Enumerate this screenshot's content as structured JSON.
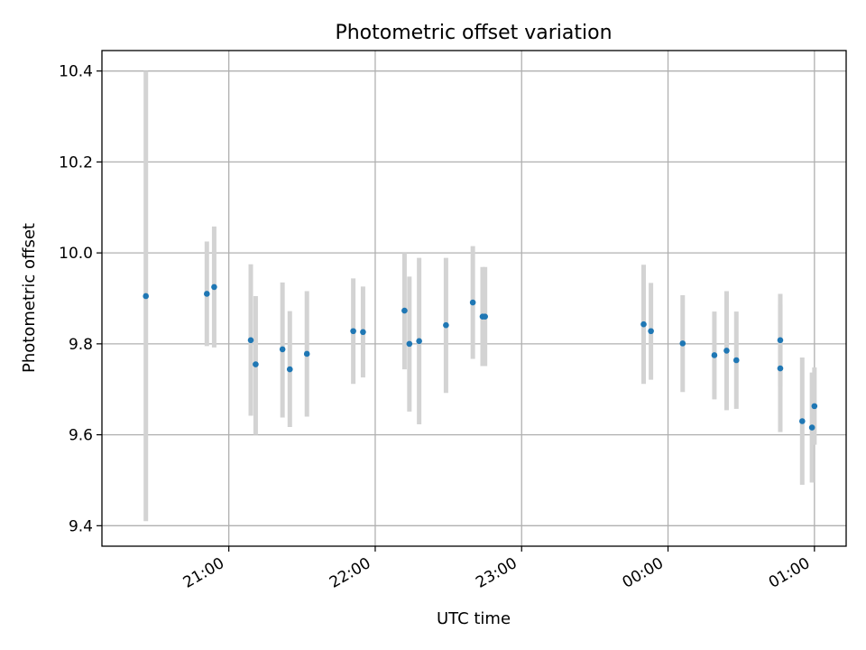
{
  "chart_data": {
    "type": "scatter",
    "title": "Photometric offset variation",
    "xlabel": "UTC time",
    "ylabel": "Photometric offset",
    "x_axis_kind": "time",
    "xlim": [
      "20:08",
      "01:13"
    ],
    "ylim": [
      9.355,
      10.445
    ],
    "xticks": [
      {
        "value": "21:00",
        "label": "21:00"
      },
      {
        "value": "22:00",
        "label": "22:00"
      },
      {
        "value": "23:00",
        "label": "23:00"
      },
      {
        "value": "00:00",
        "label": "00:00"
      },
      {
        "value": "01:00",
        "label": "01:00"
      }
    ],
    "yticks": [
      {
        "value": 9.4,
        "label": "9.4"
      },
      {
        "value": 9.6,
        "label": "9.6"
      },
      {
        "value": 9.8,
        "label": "9.8"
      },
      {
        "value": 10.0,
        "label": "10.0"
      },
      {
        "value": 10.2,
        "label": "10.2"
      },
      {
        "value": 10.4,
        "label": "10.4"
      }
    ],
    "grid": true,
    "colors": {
      "point": "#1f77b4",
      "errorbar": "#d3d3d3"
    },
    "points": [
      {
        "t": "20:26",
        "y": 9.905,
        "lo": 9.41,
        "hi": 10.4
      },
      {
        "t": "20:51",
        "y": 9.91,
        "lo": 9.795,
        "hi": 10.025
      },
      {
        "t": "20:54",
        "y": 9.925,
        "lo": 9.792,
        "hi": 10.058
      },
      {
        "t": "21:09",
        "y": 9.808,
        "lo": 9.642,
        "hi": 9.975
      },
      {
        "t": "21:11",
        "y": 9.755,
        "lo": 9.6,
        "hi": 9.905
      },
      {
        "t": "21:22",
        "y": 9.788,
        "lo": 9.638,
        "hi": 9.935
      },
      {
        "t": "21:25",
        "y": 9.744,
        "lo": 9.617,
        "hi": 9.872
      },
      {
        "t": "21:32",
        "y": 9.778,
        "lo": 9.64,
        "hi": 9.916
      },
      {
        "t": "21:51",
        "y": 9.828,
        "lo": 9.712,
        "hi": 9.944
      },
      {
        "t": "21:55",
        "y": 9.826,
        "lo": 9.726,
        "hi": 9.926
      },
      {
        "t": "22:12",
        "y": 9.873,
        "lo": 9.744,
        "hi": 10.0
      },
      {
        "t": "22:14",
        "y": 9.8,
        "lo": 9.651,
        "hi": 9.948
      },
      {
        "t": "22:18",
        "y": 9.806,
        "lo": 9.623,
        "hi": 9.989
      },
      {
        "t": "22:29",
        "y": 9.841,
        "lo": 9.692,
        "hi": 9.989
      },
      {
        "t": "22:40",
        "y": 9.891,
        "lo": 9.767,
        "hi": 10.015
      },
      {
        "t": "22:44",
        "y": 9.86,
        "lo": 9.751,
        "hi": 9.969
      },
      {
        "t": "22:45",
        "y": 9.86,
        "lo": 9.751,
        "hi": 9.969
      },
      {
        "t": "23:50",
        "y": 9.843,
        "lo": 9.712,
        "hi": 9.974
      },
      {
        "t": "23:53",
        "y": 9.828,
        "lo": 9.721,
        "hi": 9.934
      },
      {
        "t": "00:06",
        "y": 9.801,
        "lo": 9.694,
        "hi": 9.907
      },
      {
        "t": "00:19",
        "y": 9.775,
        "lo": 9.678,
        "hi": 9.871
      },
      {
        "t": "00:24",
        "y": 9.785,
        "lo": 9.654,
        "hi": 9.916
      },
      {
        "t": "00:28",
        "y": 9.764,
        "lo": 9.657,
        "hi": 9.871
      },
      {
        "t": "00:46",
        "y": 9.808,
        "lo": 9.706,
        "hi": 9.91
      },
      {
        "t": "00:46",
        "y": 9.746,
        "lo": 9.606,
        "hi": 9.886
      },
      {
        "t": "00:55",
        "y": 9.63,
        "lo": 9.49,
        "hi": 9.77
      },
      {
        "t": "00:59",
        "y": 9.616,
        "lo": 9.495,
        "hi": 9.737
      },
      {
        "t": "01:00",
        "y": 9.663,
        "lo": 9.578,
        "hi": 9.748
      }
    ]
  }
}
